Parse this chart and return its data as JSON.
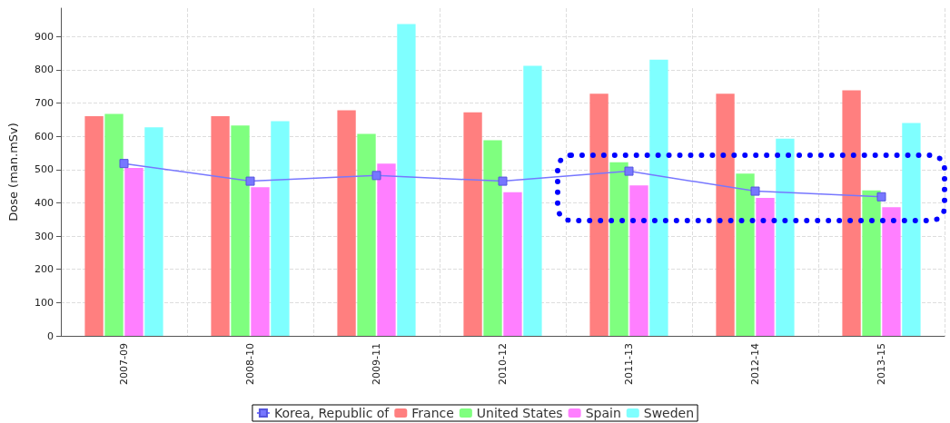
{
  "chart_data": {
    "type": "bar",
    "ylabel": "Dose (man.mSv)",
    "categories": [
      "2007-09",
      "2008-10",
      "2009-11",
      "2010-12",
      "2011-13",
      "2012-14",
      "2013-15"
    ],
    "series": [
      {
        "name": "Korea, Republic of",
        "type": "line",
        "color": "#7777ff",
        "values": [
          518,
          465,
          482,
          465,
          495,
          435,
          418
        ]
      },
      {
        "name": "France",
        "color": "#ff7f7f",
        "values": [
          660,
          660,
          678,
          672,
          728,
          728,
          738
        ]
      },
      {
        "name": "United States",
        "color": "#7fff7f",
        "values": [
          667,
          632,
          607,
          588,
          522,
          488,
          437
        ]
      },
      {
        "name": "Spain",
        "color": "#ff7fff",
        "values": [
          505,
          447,
          518,
          432,
          452,
          415,
          387
        ]
      },
      {
        "name": "Sweden",
        "color": "#7fffff",
        "values": [
          627,
          645,
          937,
          812,
          830,
          593,
          640
        ]
      }
    ],
    "ylim": [
      0,
      985
    ],
    "yticks": [
      0,
      100,
      200,
      300,
      400,
      500,
      600,
      700,
      800,
      900
    ],
    "grid": true,
    "legend": "bottom",
    "marker": "square"
  }
}
